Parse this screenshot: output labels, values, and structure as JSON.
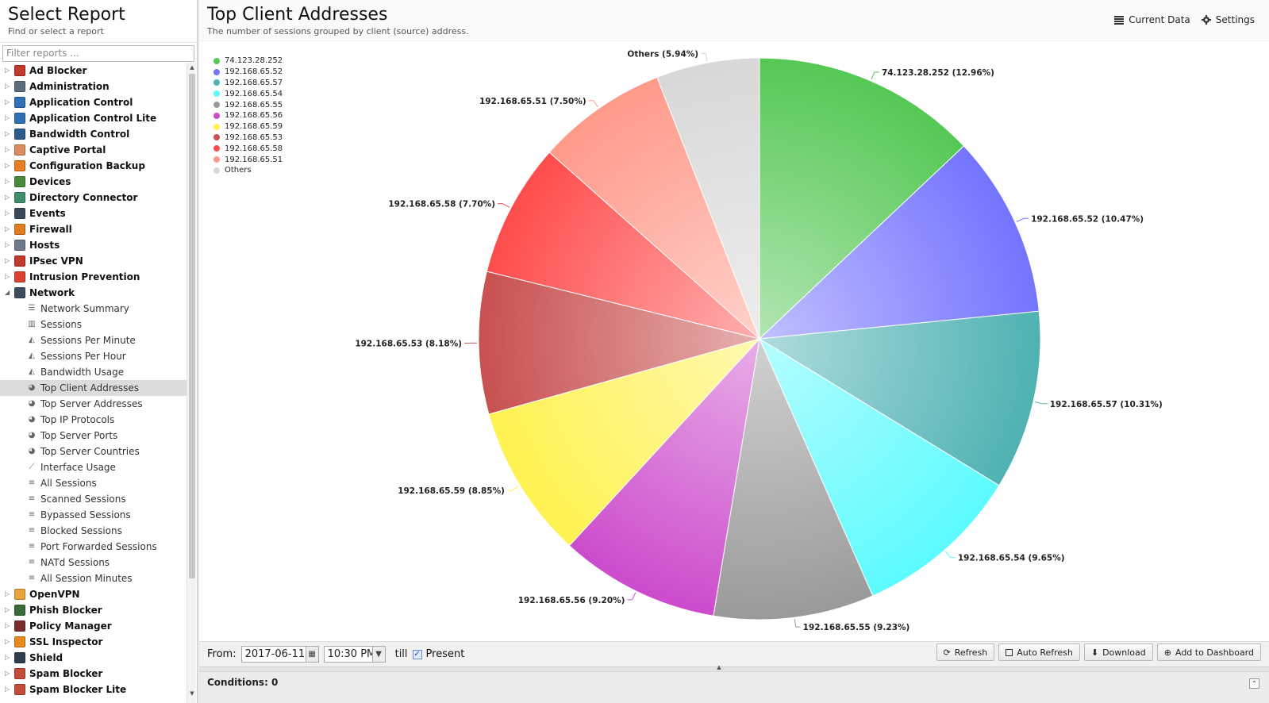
{
  "sidebar": {
    "title": "Select Report",
    "subtitle": "Find or select a report",
    "filter_placeholder": "Filter reports ...",
    "categories_before": [
      {
        "label": "Ad Blocker",
        "icon": "ad-blocker-icon",
        "color": "#c0392b"
      },
      {
        "label": "Administration",
        "icon": "administration-icon",
        "color": "#5d6d7e"
      },
      {
        "label": "Application Control",
        "icon": "application-control-icon",
        "color": "#2e6fb5"
      },
      {
        "label": "Application Control Lite",
        "icon": "application-control-lite-icon",
        "color": "#2e6fb5"
      },
      {
        "label": "Bandwidth Control",
        "icon": "bandwidth-control-icon",
        "color": "#2d5b8c"
      },
      {
        "label": "Captive Portal",
        "icon": "captive-portal-icon",
        "color": "#d98c5f"
      },
      {
        "label": "Configuration Backup",
        "icon": "configuration-backup-icon",
        "color": "#e67e22"
      },
      {
        "label": "Devices",
        "icon": "devices-icon",
        "color": "#4a8a3a"
      },
      {
        "label": "Directory Connector",
        "icon": "directory-connector-icon",
        "color": "#3f8f6b"
      },
      {
        "label": "Events",
        "icon": "events-icon",
        "color": "#3b4a5a"
      },
      {
        "label": "Firewall",
        "icon": "firewall-icon",
        "color": "#e07b1f"
      },
      {
        "label": "Hosts",
        "icon": "hosts-icon",
        "color": "#6c7a89"
      },
      {
        "label": "IPsec VPN",
        "icon": "ipsec-vpn-icon",
        "color": "#c0392b"
      },
      {
        "label": "Intrusion Prevention",
        "icon": "intrusion-prevention-icon",
        "color": "#d9432f"
      },
      {
        "label": "Network",
        "icon": "network-icon",
        "color": "#3d4c5c"
      }
    ],
    "network_reports": [
      {
        "label": "Network Summary",
        "icon": "text-report-icon"
      },
      {
        "label": "Sessions",
        "icon": "bar-chart-icon"
      },
      {
        "label": "Sessions Per Minute",
        "icon": "area-chart-icon"
      },
      {
        "label": "Sessions Per Hour",
        "icon": "area-chart-icon"
      },
      {
        "label": "Bandwidth Usage",
        "icon": "area-chart-icon"
      },
      {
        "label": "Top Client Addresses",
        "icon": "pie-chart-icon",
        "selected": true
      },
      {
        "label": "Top Server Addresses",
        "icon": "pie-chart-icon"
      },
      {
        "label": "Top IP Protocols",
        "icon": "pie-chart-icon"
      },
      {
        "label": "Top Server Ports",
        "icon": "pie-chart-icon"
      },
      {
        "label": "Top Server Countries",
        "icon": "pie-chart-icon"
      },
      {
        "label": "Interface Usage",
        "icon": "line-chart-icon"
      },
      {
        "label": "All Sessions",
        "icon": "list-icon"
      },
      {
        "label": "Scanned Sessions",
        "icon": "list-icon"
      },
      {
        "label": "Bypassed Sessions",
        "icon": "list-icon"
      },
      {
        "label": "Blocked Sessions",
        "icon": "list-icon"
      },
      {
        "label": "Port Forwarded Sessions",
        "icon": "list-icon"
      },
      {
        "label": "NATd Sessions",
        "icon": "list-icon"
      },
      {
        "label": "All Session Minutes",
        "icon": "list-icon"
      }
    ],
    "categories_after": [
      {
        "label": "OpenVPN",
        "icon": "openvpn-icon",
        "color": "#e8a33a"
      },
      {
        "label": "Phish Blocker",
        "icon": "phish-blocker-icon",
        "color": "#3a6b3a"
      },
      {
        "label": "Policy Manager",
        "icon": "policy-manager-icon",
        "color": "#7b2d2d"
      },
      {
        "label": "SSL Inspector",
        "icon": "ssl-inspector-icon",
        "color": "#e88a1a"
      },
      {
        "label": "Shield",
        "icon": "shield-icon",
        "color": "#2f3e4e"
      },
      {
        "label": "Spam Blocker",
        "icon": "spam-blocker-icon",
        "color": "#c44d3a"
      },
      {
        "label": "Spam Blocker Lite",
        "icon": "spam-blocker-lite-icon",
        "color": "#c44d3a"
      }
    ]
  },
  "report": {
    "title": "Top Client Addresses",
    "description": "The number of sessions grouped by client (source) address.",
    "current_data_label": "Current Data",
    "settings_label": "Settings"
  },
  "chart_data": {
    "type": "pie",
    "slices": [
      {
        "name": "74.123.28.252",
        "label": "74.123.28.252 (12.96%)",
        "value": 12.96,
        "color": "#55c855"
      },
      {
        "name": "192.168.65.52",
        "label": "192.168.65.52 (10.47%)",
        "value": 10.47,
        "color": "#7474ff"
      },
      {
        "name": "192.168.65.57",
        "label": "192.168.65.57 (10.31%)",
        "value": 10.31,
        "color": "#4fb2b2"
      },
      {
        "name": "192.168.65.54",
        "label": "192.168.65.54 (9.65%)",
        "value": 9.65,
        "color": "#5cfbff"
      },
      {
        "name": "192.168.65.55",
        "label": "192.168.65.55 (9.23%)",
        "value": 9.23,
        "color": "#9a9a9a"
      },
      {
        "name": "192.168.65.56",
        "label": "192.168.65.56 (9.20%)",
        "value": 9.2,
        "color": "#cc4ccc"
      },
      {
        "name": "192.168.65.59",
        "label": "192.168.65.59 (8.85%)",
        "value": 8.85,
        "color": "#fff250"
      },
      {
        "name": "192.168.65.53",
        "label": "192.168.65.53 (8.18%)",
        "value": 8.18,
        "color": "#c85050"
      },
      {
        "name": "192.168.65.58",
        "label": "192.168.65.58 (7.70%)",
        "value": 7.7,
        "color": "#ff4c4c"
      },
      {
        "name": "192.168.65.51",
        "label": "192.168.65.51 (7.50%)",
        "value": 7.5,
        "color": "#ff9a8a"
      },
      {
        "name": "Others",
        "label": "Others (5.94%)",
        "value": 5.94,
        "color": "#d8d8d8"
      }
    ],
    "legend_position": "top-left"
  },
  "toolbar": {
    "from_label": "From:",
    "date_value": "2017-06-11",
    "time_value": "10:30 PM",
    "till_label": "till",
    "present_label": "Present",
    "refresh_label": "Refresh",
    "auto_refresh_label": "Auto Refresh",
    "download_label": "Download",
    "add_to_dashboard_label": "Add to Dashboard"
  },
  "conditions": {
    "label": "Conditions: 0"
  }
}
